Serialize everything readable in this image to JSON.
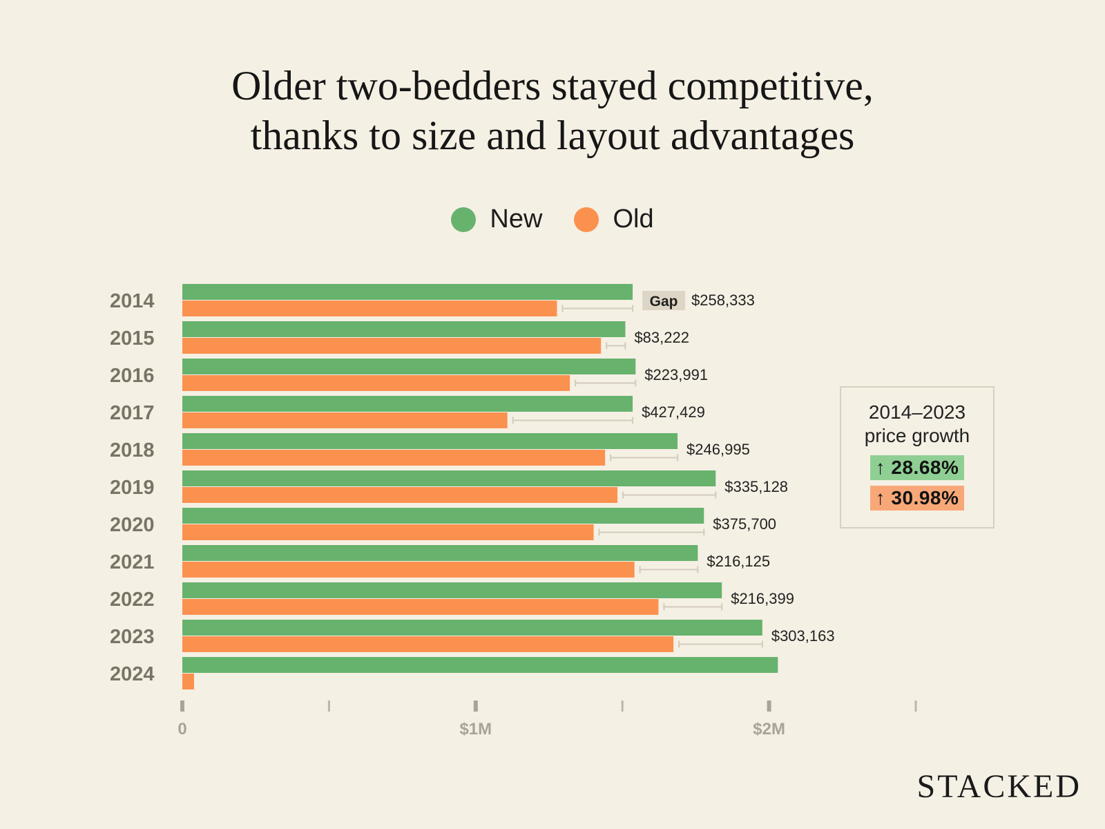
{
  "title_lines": [
    "Older two-bedders stayed competitive,",
    "thanks to size and layout advantages"
  ],
  "legend": [
    {
      "label": "New",
      "color": "#67b26d"
    },
    {
      "label": "Old",
      "color": "#fb914f"
    }
  ],
  "growth_box": {
    "period": "2014–2023",
    "caption": "price growth",
    "new_growth": "↑ 28.68%",
    "old_growth": "↑ 30.98%"
  },
  "brand": "STACKED",
  "chart_data": {
    "type": "bar",
    "orientation": "horizontal",
    "title": "Older two-bedders stayed competitive, thanks to size and layout advantages",
    "categories": [
      "2014",
      "2015",
      "2016",
      "2017",
      "2018",
      "2019",
      "2020",
      "2021",
      "2022",
      "2023",
      "2024"
    ],
    "series": [
      {
        "name": "New",
        "color": "#67b26d",
        "values": [
          1535000,
          1510000,
          1545000,
          1535000,
          1688000,
          1818000,
          1778000,
          1757000,
          1839000,
          1977000,
          2030000
        ]
      },
      {
        "name": "Old",
        "color": "#fb914f",
        "values": [
          1277000,
          1427000,
          1321000,
          1108000,
          1441000,
          1483000,
          1402000,
          1541000,
          1623000,
          1674000,
          40000
        ]
      }
    ],
    "gap_badge": "Gap",
    "gap_labels": [
      "$258,333",
      "$83,222",
      "$223,991",
      "$427,429",
      "$246,995",
      "$335,128",
      "$375,700",
      "$216,125",
      "$216,399",
      "$303,163",
      ""
    ],
    "xlim": [
      0,
      2500000
    ],
    "xticks": [
      0,
      500000,
      1000000,
      1500000,
      2000000,
      2500000
    ],
    "xtick_labels": [
      "0",
      "",
      "$1M",
      "",
      "$2M",
      ""
    ],
    "xlabel": "",
    "ylabel": "",
    "grid": false,
    "legend_position": "top-center"
  }
}
